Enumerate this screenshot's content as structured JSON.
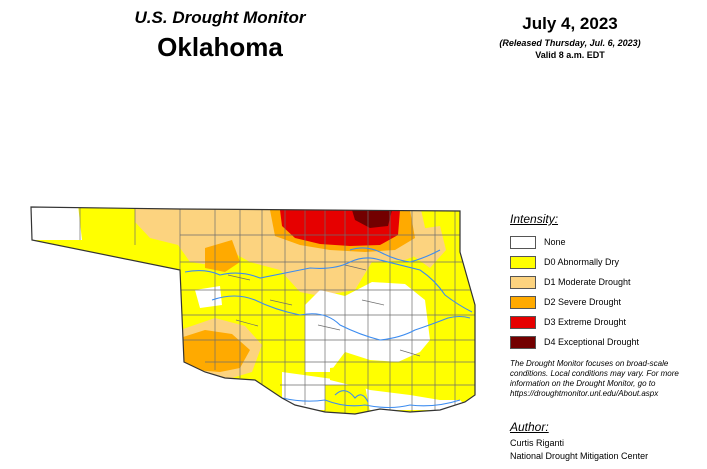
{
  "header": {
    "monitor_title": "U.S. Drought Monitor",
    "state": "Oklahoma",
    "date": "July 4, 2023",
    "released": "(Released Thursday, Jul. 6, 2023)",
    "valid": "Valid 8 a.m. EDT"
  },
  "legend": {
    "title": "Intensity:",
    "items": [
      {
        "label": "None",
        "color": "#ffffff"
      },
      {
        "label": "D0 Abnormally Dry",
        "color": "#ffff00"
      },
      {
        "label": "D1 Moderate Drought",
        "color": "#fcd37f"
      },
      {
        "label": "D2 Severe Drought",
        "color": "#ffaa00"
      },
      {
        "label": "D3 Extreme Drought",
        "color": "#e60000"
      },
      {
        "label": "D4 Exceptional Drought",
        "color": "#730000"
      }
    ]
  },
  "disclaimer": "The Drought Monitor focuses on broad-scale conditions. Local conditions may vary. For more information on the Drought Monitor, go to https://droughtmonitor.unl.edu/About.aspx",
  "author": {
    "title": "Author:",
    "name": "Curtis Riganti",
    "org": "National Drought Mitigation Center"
  },
  "map": {
    "river_color": "#3c8cf0",
    "county_line_color": "#6e6e6e"
  }
}
